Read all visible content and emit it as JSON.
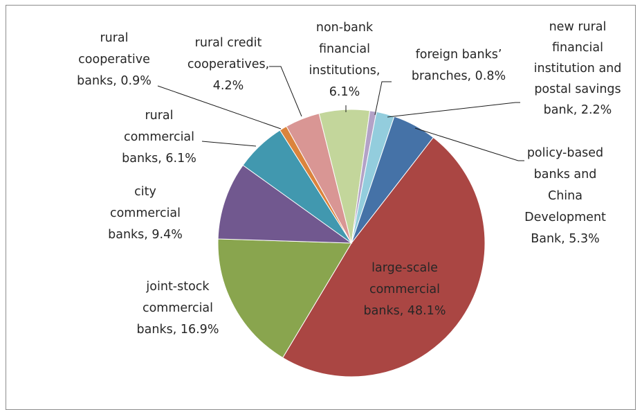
{
  "chart_data": {
    "type": "pie",
    "title": "",
    "slices": [
      {
        "name": "large-scale commercial banks",
        "value": 48.1,
        "text": "48.1%",
        "color": "#AA4643"
      },
      {
        "name": "joint-stock commercial banks",
        "value": 16.9,
        "text": "16.9%",
        "color": "#89A54E"
      },
      {
        "name": "city commercial banks",
        "value": 9.4,
        "text": "9.4%",
        "color": "#71588F"
      },
      {
        "name": "rural commercial banks",
        "value": 6.1,
        "text": "6.1%",
        "color": "#4198AF"
      },
      {
        "name": "rural cooperative banks",
        "value": 0.9,
        "text": "0.9%",
        "color": "#DB843D"
      },
      {
        "name": "rural credit cooperatives",
        "value": 4.2,
        "text": "4.2%",
        "color": "#D99694"
      },
      {
        "name": "non-bank financial institutions",
        "value": 6.1,
        "text": "6.1%",
        "color": "#C3D69B"
      },
      {
        "name": "foreign banks’ branches",
        "value": 0.8,
        "text": "0.8%",
        "color": "#B3A2C7"
      },
      {
        "name": "new rural financial institution and postal savings bank",
        "value": 2.2,
        "text": "2.2%",
        "color": "#93CDDD"
      },
      {
        "name": "policy-based banks and China Development Bank",
        "value": 5.3,
        "text": "5.3%",
        "color": "#4572A7"
      }
    ],
    "labels": [
      [
        "large-scale",
        "commercial",
        "banks, 48.1%"
      ],
      [
        "joint-stock",
        "commercial",
        "banks, 16.9%"
      ],
      [
        "city",
        "commercial",
        "banks, 9.4%"
      ],
      [
        "rural",
        "commercial",
        "banks, 6.1%"
      ],
      [
        "rural",
        "cooperative",
        "banks, 0.9%"
      ],
      [
        "rural credit",
        "cooperatives,",
        "4.2%"
      ],
      [
        "non-bank",
        "financial",
        "institutions,",
        "6.1%"
      ],
      [
        "foreign banks’",
        "branches, 0.8%"
      ],
      [
        "new rural",
        "financial",
        "institution and",
        "postal savings",
        "bank, 2.2%"
      ],
      [
        "policy-based",
        "banks and",
        "China",
        "Development",
        "Bank, 5.3%"
      ]
    ],
    "legend": "none"
  }
}
